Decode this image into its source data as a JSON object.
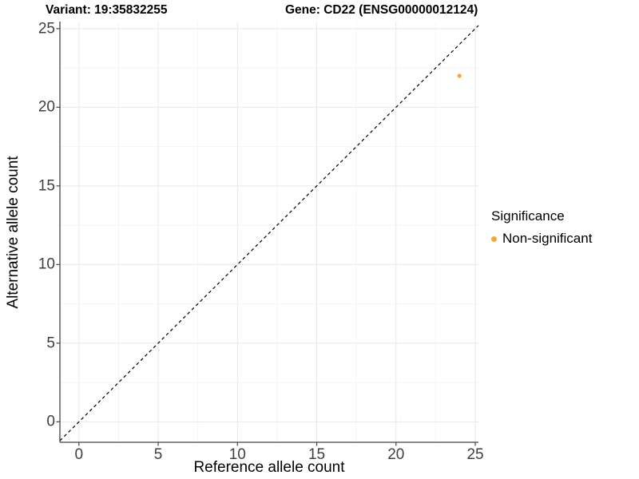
{
  "titles": {
    "variant": "Variant: 19:35832255",
    "gene": "Gene: CD22 (ENSG00000012124)"
  },
  "legend": {
    "title": "Significance",
    "items": [
      {
        "label": "Non-significant",
        "color": "#FAA43A",
        "marker": "circle"
      }
    ]
  },
  "chart_data": {
    "type": "scatter",
    "subplot_titles": [
      "Variant: 19:35832255",
      "Gene: CD22 (ENSG00000012124)"
    ],
    "xlabel": "Reference allele count",
    "ylabel": "Alternative allele count",
    "xlim": [
      -1.2,
      25.2
    ],
    "ylim": [
      -1.3,
      25.45
    ],
    "x_ticks": [
      0,
      5,
      10,
      15,
      20,
      25
    ],
    "y_ticks": [
      0,
      5,
      10,
      15,
      20,
      25
    ],
    "x_minor_ticks": [
      2.5,
      7.5,
      12.5,
      17.5,
      22.5
    ],
    "y_minor_ticks": [
      2.5,
      7.5,
      12.5,
      17.5,
      22.5
    ],
    "grid": "major+minor",
    "legend_position": "right",
    "identity_line": {
      "slope": 1,
      "intercept": 0,
      "style": "dashed",
      "color": "#000000"
    },
    "series": [
      {
        "name": "Non-significant",
        "color": "#FAA43A",
        "points": [
          {
            "x": 24,
            "y": 22
          }
        ]
      }
    ],
    "colors": {
      "background": "#FFFFFF",
      "major_grid": "#E8E8E8",
      "minor_grid": "#F4F4F4",
      "axis_line": "#444444",
      "tick_text": "#3F3F3F",
      "point": "#FAA43A"
    }
  }
}
